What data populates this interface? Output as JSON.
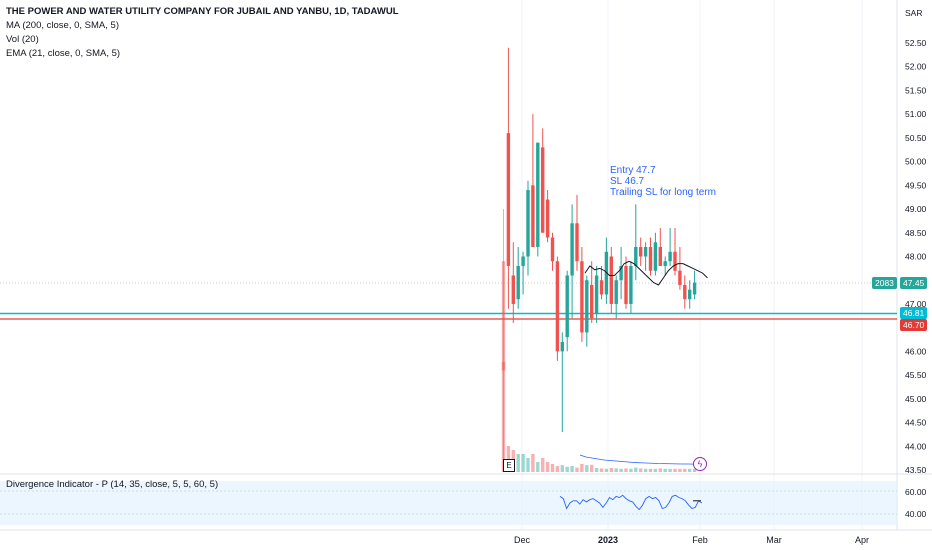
{
  "legend": {
    "title": "THE POWER AND WATER UTILITY COMPANY FOR JUBAIL AND YANBU, 1D, TADAWUL",
    "ma": "MA (200, close, 0, SMA, 5)",
    "vol": "Vol (20)",
    "ema": "EMA (21, close, 0, SMA, 5)"
  },
  "currency": "SAR",
  "oscillator": {
    "label": "Divergence Indicator - P (14, 35, close, 5, 5, 60, 5)",
    "ticks": [
      "60.00",
      "40.00"
    ]
  },
  "annotation": [
    "Entry 47.7",
    "SL 46.7",
    "Trailing SL for long term"
  ],
  "badges": {
    "volume": "2083",
    "price": "47.45",
    "cyan": "46.81",
    "red": "46.70"
  },
  "markers": {
    "earnings": "E",
    "flash": "ϟ"
  },
  "colors": {
    "up": "#26a69a",
    "down": "#ef5350",
    "cyan": "#00bcd4",
    "red": "#e53935",
    "blue": "#2962ff",
    "ema": "#131722"
  },
  "chart_data": {
    "type": "candlestick",
    "y_axis_ticks": [
      "52.50",
      "52.00",
      "51.50",
      "51.00",
      "50.50",
      "50.00",
      "49.50",
      "49.00",
      "48.50",
      "48.00",
      "47.50",
      "47.00",
      "46.50",
      "46.00",
      "45.50",
      "45.00",
      "44.50",
      "44.00",
      "43.50"
    ],
    "ylim": [
      43.4,
      52.8
    ],
    "x_ticks": [
      "Dec",
      "2023",
      "Feb",
      "Mar",
      "Apr"
    ],
    "horizontal_lines": [
      46.81,
      46.7
    ],
    "last_price": 47.45,
    "candles": [
      {
        "o": 47.9,
        "h": 49.0,
        "l": 43.5,
        "c": 45.6
      },
      {
        "o": 50.6,
        "h": 52.4,
        "l": 46.9,
        "c": 47.8
      },
      {
        "o": 47.6,
        "h": 48.3,
        "l": 46.6,
        "c": 47.0
      },
      {
        "o": 47.1,
        "h": 48.2,
        "l": 46.9,
        "c": 47.8
      },
      {
        "o": 47.8,
        "h": 48.1,
        "l": 47.2,
        "c": 48.0
      },
      {
        "o": 48.0,
        "h": 49.6,
        "l": 47.6,
        "c": 49.4
      },
      {
        "o": 49.5,
        "h": 51.0,
        "l": 48.2,
        "c": 48.2
      },
      {
        "o": 48.2,
        "h": 50.4,
        "l": 48.0,
        "c": 50.4
      },
      {
        "o": 50.3,
        "h": 50.7,
        "l": 48.5,
        "c": 48.5
      },
      {
        "o": 49.2,
        "h": 49.4,
        "l": 48.3,
        "c": 48.4
      },
      {
        "o": 48.4,
        "h": 48.5,
        "l": 47.7,
        "c": 47.9
      },
      {
        "o": 47.9,
        "h": 48.0,
        "l": 45.8,
        "c": 46.0
      },
      {
        "o": 46.0,
        "h": 46.4,
        "l": 44.3,
        "c": 46.2
      },
      {
        "o": 46.3,
        "h": 47.7,
        "l": 46.0,
        "c": 47.6
      },
      {
        "o": 47.6,
        "h": 49.1,
        "l": 46.7,
        "c": 48.7
      },
      {
        "o": 48.7,
        "h": 49.3,
        "l": 47.7,
        "c": 47.9
      },
      {
        "o": 47.9,
        "h": 48.2,
        "l": 46.2,
        "c": 46.4
      },
      {
        "o": 46.4,
        "h": 47.6,
        "l": 46.1,
        "c": 47.5
      },
      {
        "o": 47.4,
        "h": 47.9,
        "l": 46.6,
        "c": 46.7
      },
      {
        "o": 46.8,
        "h": 47.8,
        "l": 46.6,
        "c": 47.6
      },
      {
        "o": 47.5,
        "h": 47.8,
        "l": 47.1,
        "c": 47.2
      },
      {
        "o": 47.2,
        "h": 48.4,
        "l": 47.0,
        "c": 48.1
      },
      {
        "o": 48.0,
        "h": 48.2,
        "l": 46.8,
        "c": 47.0
      },
      {
        "o": 47.0,
        "h": 47.6,
        "l": 46.7,
        "c": 47.5
      },
      {
        "o": 47.5,
        "h": 48.2,
        "l": 47.1,
        "c": 47.8
      },
      {
        "o": 47.8,
        "h": 48.0,
        "l": 46.9,
        "c": 47.0
      },
      {
        "o": 47.0,
        "h": 47.9,
        "l": 46.8,
        "c": 47.8
      },
      {
        "o": 47.8,
        "h": 49.1,
        "l": 47.5,
        "c": 48.2
      },
      {
        "o": 48.2,
        "h": 48.4,
        "l": 47.8,
        "c": 48.0
      },
      {
        "o": 48.0,
        "h": 48.3,
        "l": 47.7,
        "c": 48.2
      },
      {
        "o": 48.2,
        "h": 48.4,
        "l": 47.6,
        "c": 47.7
      },
      {
        "o": 47.7,
        "h": 48.5,
        "l": 47.6,
        "c": 48.3
      },
      {
        "o": 48.2,
        "h": 48.6,
        "l": 47.8,
        "c": 47.8
      },
      {
        "o": 47.8,
        "h": 48.0,
        "l": 47.6,
        "c": 47.9
      },
      {
        "o": 47.9,
        "h": 48.6,
        "l": 47.8,
        "c": 48.1
      },
      {
        "o": 48.1,
        "h": 48.6,
        "l": 47.6,
        "c": 47.7
      },
      {
        "o": 47.7,
        "h": 48.2,
        "l": 47.3,
        "c": 47.4
      },
      {
        "o": 47.4,
        "h": 47.6,
        "l": 46.9,
        "c": 47.1
      },
      {
        "o": 47.1,
        "h": 47.5,
        "l": 46.9,
        "c": 47.3
      },
      {
        "o": 47.2,
        "h": 47.7,
        "l": 47.1,
        "c": 47.45
      }
    ],
    "ema": [
      47.65,
      47.8,
      47.72,
      47.75,
      47.7,
      47.6,
      47.6,
      47.7,
      47.85,
      47.9,
      47.85,
      47.75,
      47.65,
      47.55,
      47.45,
      47.4,
      47.55,
      47.7,
      47.8,
      47.85,
      47.85,
      47.8,
      47.75,
      47.7,
      47.65,
      47.55
    ],
    "volume": [
      100,
      6,
      5,
      4,
      4,
      3,
      4,
      2,
      3,
      2,
      1.5,
      1,
      1.2,
      0.8,
      1,
      0.6,
      1.5,
      1.2,
      1.3,
      0.5,
      0.4,
      0.3,
      0.5,
      0.4,
      0.3,
      0.4,
      0.3,
      0.6,
      0.4,
      0.3,
      0.3,
      0.3,
      0.4,
      0.3,
      0.3,
      0.3,
      0.3,
      0.3,
      0.3,
      0.3
    ],
    "volume_ma": [
      2.5,
      2.1,
      1.9,
      1.7,
      1.5,
      1.4,
      1.3,
      1.2,
      1.1,
      1.0,
      0.95,
      0.9,
      0.85,
      0.8,
      0.78,
      0.75,
      0.72,
      0.7,
      0.7,
      0.68
    ],
    "oscillator": [
      56,
      54,
      45,
      50,
      52,
      52,
      49,
      53,
      51,
      53,
      54,
      52,
      50,
      46,
      50,
      55,
      53,
      56,
      55,
      57,
      54,
      52,
      51,
      47,
      44,
      48,
      54,
      56,
      54,
      55,
      52,
      45,
      46,
      50,
      56,
      57,
      55,
      54,
      52,
      48,
      45,
      46,
      52,
      50
    ],
    "oscillator_ylim": [
      30,
      70
    ]
  }
}
